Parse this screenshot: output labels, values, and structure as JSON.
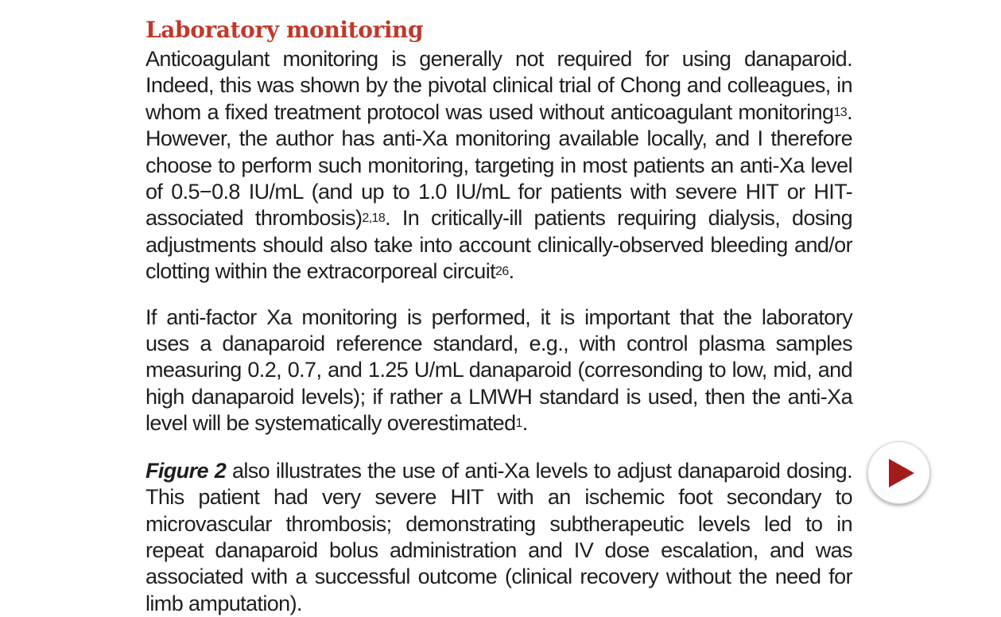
{
  "section": {
    "heading": "Laboratory monitoring"
  },
  "paragraph1": {
    "s1": "Anticoagulant monitoring is generally not required for using danaparoid. Indeed, this was shown by the pivotal clinical trial of Chong and colleagues, in whom a fixed treatment protocol was used without anticoagulant monitoring",
    "ref1": "13",
    "s2": ". However, the author has anti-Xa monitoring available locally, and I therefore choose to perform such monitoring, targeting in most patients an anti-Xa level of 0.5−0.8 IU/mL (and up to 1.0 IU/mL for patients with severe HIT or HIT-associated thrombosis)",
    "ref2": "2,18",
    "s3": ". In critically-ill patients requiring dialysis, dosing adjustments should also take into account clinically-observed bleeding and/or clotting within the extracorporeal circuit",
    "ref3": "26",
    "s4": "."
  },
  "paragraph2": {
    "s1": "If anti-factor Xa monitoring is performed, it is important that the laboratory uses a danaparoid reference standard, e.g., with control plasma samples measuring 0.2, 0.7, and 1.25 U/mL danaparoid (corresonding to low, mid, and high danaparoid levels); if rather a LMWH standard is used, then the anti-Xa level will be systematically overestimated",
    "ref1": "1",
    "s2": "."
  },
  "paragraph3": {
    "figure_ref": "Figure 2",
    "s1": " also illustrates the use of anti-Xa levels to adjust danaparoid dosing. This patient had very severe HIT with an ischemic foot secondary to microvascular thrombosis; demonstrating subtherapeutic levels led to in repeat danaparoid bolus administration and IV dose escalation, and was associated with a successful outcome (clinical recovery without the need for limb amputation)."
  },
  "controls": {
    "play_icon": "play-icon",
    "accent_color": "#a31c1c"
  }
}
